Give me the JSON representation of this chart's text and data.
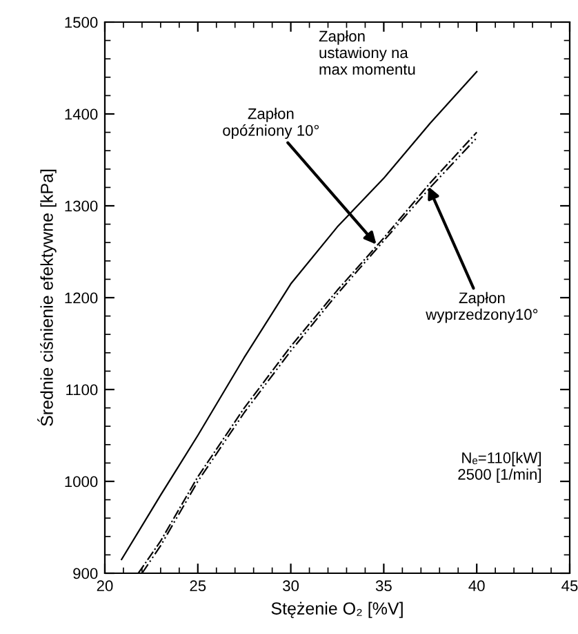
{
  "chart_data": {
    "type": "line",
    "xlabel": "Stężenie O₂ [%V]",
    "ylabel": "Średnie ciśnienie efektywne [kPa]",
    "series": [
      {
        "color": "#000000",
        "line_style": "solid",
        "x": [
          20.9,
          23,
          25,
          27.5,
          30,
          32.5,
          35,
          37.5,
          40
        ],
        "values": [
          915,
          985,
          1050,
          1135,
          1215,
          1277,
          1330,
          1390,
          1446
        ]
      },
      {
        "color": "#000000",
        "line_style": "dashdot",
        "x": [
          21.8,
          23,
          25,
          27.5,
          30,
          32.5,
          35,
          37.5,
          40
        ],
        "values": [
          900,
          935,
          1005,
          1080,
          1147,
          1208,
          1265,
          1325,
          1380
        ]
      },
      {
        "color": "#000000",
        "line_style": "dashdotdot",
        "x": [
          22,
          23,
          25,
          27.5,
          30,
          32.5,
          35,
          37.5,
          40
        ],
        "values": [
          900,
          930,
          1000,
          1075,
          1142,
          1204,
          1262,
          1320,
          1374
        ]
      }
    ],
    "annotations": [
      "Zapłon\nustawiony na\nmax momentu",
      {
        "text": "Zapłon\nopóźniony 10°",
        "x": 34.6,
        "y": 1258
      },
      {
        "text": "Zapłon\nwyprzedzony10°",
        "x": 37.4,
        "y": 1321
      },
      "Nₑ=110[kW]\n2500 [1/min]"
    ],
    "xlim": [
      20,
      45
    ],
    "ylim": [
      900,
      1500
    ],
    "xticks": [
      20,
      25,
      30,
      35,
      40,
      45
    ],
    "yticks": [
      900,
      1000,
      1100,
      1200,
      1300,
      1400,
      1500
    ],
    "grid": false,
    "legend": false,
    "marker": "none"
  }
}
